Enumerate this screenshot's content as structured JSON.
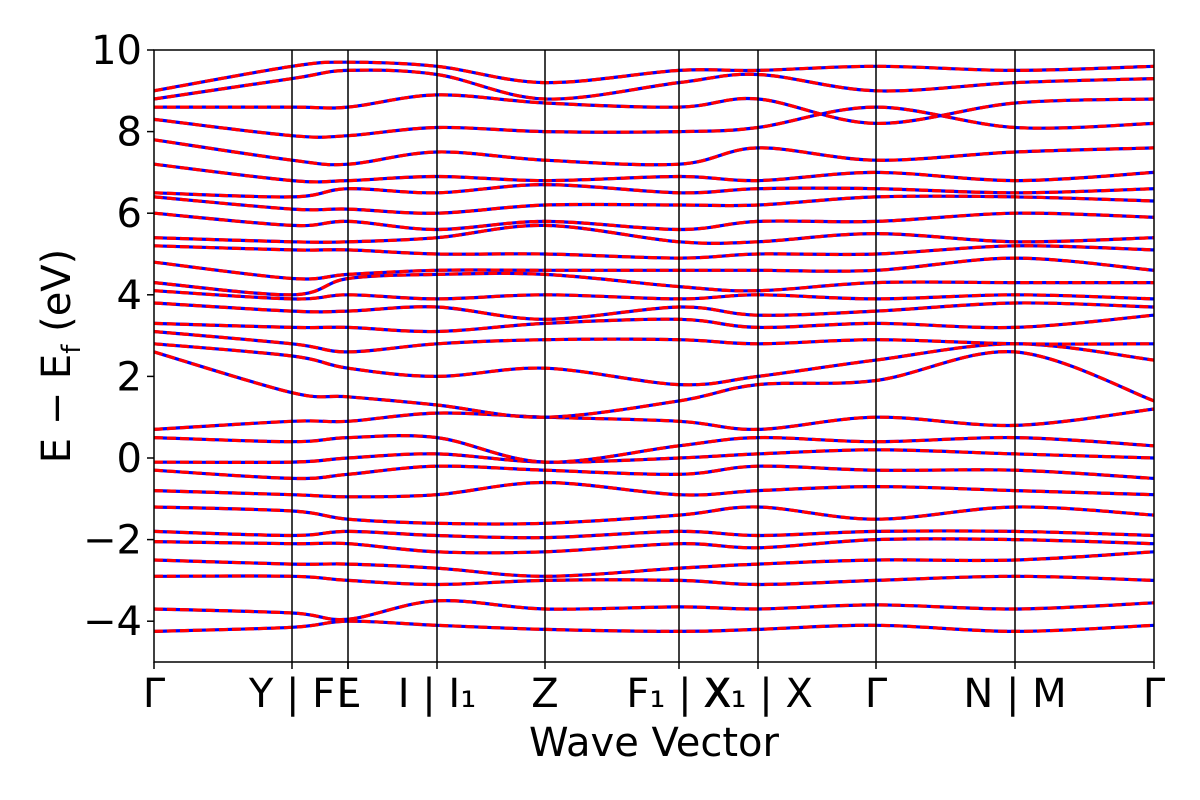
{
  "chart_data": {
    "type": "line",
    "xlabel": "Wave Vector",
    "ylabel": "E − E",
    "ylabel_subscript": "f",
    "ylabel_unit": " (eV)",
    "ylim": [
      -5,
      10
    ],
    "yticks": [
      -4,
      -2,
      0,
      2,
      4,
      6,
      8,
      10
    ],
    "ytick_labels": [
      "−4",
      "−2",
      "0",
      "2",
      "4",
      "6",
      "8",
      "10"
    ],
    "xlim": [
      0,
      1
    ],
    "kpoints": [
      {
        "x": 0.0,
        "label": "Γ"
      },
      {
        "x": 0.138,
        "label": "Y | F"
      },
      {
        "x": 0.194,
        "label": "F"
      },
      {
        "x": 0.194,
        "label": "L"
      },
      {
        "x": 0.283,
        "label": "I | I₁"
      },
      {
        "x": 0.391,
        "label": "Z"
      },
      {
        "x": 0.525,
        "label": "F₁ | X"
      },
      {
        "x": 0.604,
        "label": "X₁ | X"
      },
      {
        "x": 0.722,
        "label": "Γ"
      },
      {
        "x": 0.861,
        "label": "N | M"
      },
      {
        "x": 1.0,
        "label": "Γ"
      }
    ],
    "grid": false,
    "series_colors": {
      "primary": "#ff0000",
      "overlay": "#0000ff"
    },
    "bands": [
      {
        "name": "",
        "y": [
          -4.25,
          -4.15,
          -4.0,
          -4.1,
          -4.2,
          -4.25,
          -4.2,
          -4.1,
          -4.25,
          -4.1,
          -4.25
        ]
      },
      {
        "name": "",
        "y": [
          -3.7,
          -3.8,
          -3.95,
          -3.5,
          -3.7,
          -3.65,
          -3.7,
          -3.6,
          -3.7,
          -3.55,
          -3.7
        ]
      },
      {
        "name": "",
        "y": [
          -2.9,
          -2.9,
          -3.0,
          -3.1,
          -3.0,
          -3.0,
          -3.1,
          -3.0,
          -2.9,
          -3.0,
          -2.9
        ]
      },
      {
        "name": "",
        "y": [
          -2.5,
          -2.6,
          -2.6,
          -2.7,
          -2.9,
          -2.7,
          -2.6,
          -2.5,
          -2.5,
          -2.3,
          -2.5
        ]
      },
      {
        "name": "",
        "y": [
          -2.05,
          -2.1,
          -2.1,
          -2.3,
          -2.3,
          -2.1,
          -2.2,
          -2.0,
          -2.0,
          -2.1,
          -2.05
        ]
      },
      {
        "name": "",
        "y": [
          -1.8,
          -1.9,
          -1.8,
          -1.9,
          -1.95,
          -1.8,
          -1.9,
          -1.8,
          -1.8,
          -1.9,
          -1.8
        ]
      },
      {
        "name": "",
        "y": [
          -1.2,
          -1.3,
          -1.5,
          -1.6,
          -1.6,
          -1.4,
          -1.2,
          -1.5,
          -1.2,
          -1.4,
          -1.2
        ]
      },
      {
        "name": "",
        "y": [
          -0.8,
          -0.9,
          -0.95,
          -0.9,
          -0.6,
          -0.9,
          -0.8,
          -0.7,
          -0.8,
          -0.9,
          -0.8
        ]
      },
      {
        "name": "",
        "y": [
          -0.3,
          -0.5,
          -0.4,
          -0.2,
          -0.3,
          -0.4,
          -0.2,
          -0.3,
          -0.3,
          -0.5,
          -0.3
        ]
      },
      {
        "name": "",
        "y": [
          -0.1,
          -0.1,
          0.0,
          0.1,
          -0.1,
          0.0,
          0.1,
          0.2,
          0.1,
          0.0,
          -0.1
        ]
      },
      {
        "name": "",
        "y": [
          0.5,
          0.4,
          0.5,
          0.5,
          -0.1,
          0.3,
          0.5,
          0.4,
          0.5,
          0.3,
          0.5
        ]
      },
      {
        "name": "",
        "y": [
          0.7,
          0.9,
          0.9,
          1.1,
          1.0,
          0.9,
          0.7,
          1.0,
          0.8,
          1.2,
          0.7
        ]
      },
      {
        "name": "",
        "y": [
          2.6,
          1.6,
          1.5,
          1.3,
          1.0,
          1.4,
          1.8,
          1.9,
          2.6,
          1.4,
          2.6
        ]
      },
      {
        "name": "",
        "y": [
          2.8,
          2.5,
          2.2,
          2.0,
          2.2,
          1.8,
          2.0,
          2.4,
          2.8,
          2.4,
          2.8
        ]
      },
      {
        "name": "",
        "y": [
          3.1,
          2.8,
          2.6,
          2.8,
          2.9,
          2.9,
          2.8,
          2.9,
          2.8,
          2.8,
          3.1
        ]
      },
      {
        "name": "",
        "y": [
          3.3,
          3.2,
          3.2,
          3.1,
          3.3,
          3.4,
          3.2,
          3.3,
          3.2,
          3.5,
          3.3
        ]
      },
      {
        "name": "",
        "y": [
          3.8,
          3.6,
          3.6,
          3.7,
          3.4,
          3.7,
          3.5,
          3.6,
          3.8,
          3.7,
          3.8
        ]
      },
      {
        "name": "",
        "y": [
          4.1,
          3.9,
          4.0,
          3.9,
          4.0,
          3.9,
          4.0,
          3.9,
          4.0,
          3.9,
          4.1
        ]
      },
      {
        "name": "",
        "y": [
          4.3,
          4.0,
          4.4,
          4.5,
          4.5,
          4.2,
          4.1,
          4.3,
          4.3,
          4.3,
          4.3
        ]
      },
      {
        "name": "",
        "y": [
          4.8,
          4.4,
          4.5,
          4.6,
          4.6,
          4.6,
          4.6,
          4.6,
          4.9,
          4.6,
          4.8
        ]
      },
      {
        "name": "",
        "y": [
          5.2,
          5.1,
          5.1,
          5.0,
          5.0,
          4.9,
          5.0,
          5.0,
          5.2,
          5.1,
          5.2
        ]
      },
      {
        "name": "",
        "y": [
          5.4,
          5.3,
          5.3,
          5.4,
          5.7,
          5.3,
          5.3,
          5.5,
          5.3,
          5.4,
          5.4
        ]
      },
      {
        "name": "",
        "y": [
          6.0,
          5.7,
          5.8,
          5.6,
          5.8,
          5.6,
          5.8,
          5.8,
          6.0,
          5.9,
          6.0
        ]
      },
      {
        "name": "",
        "y": [
          6.4,
          6.1,
          6.1,
          6.0,
          6.2,
          6.2,
          6.2,
          6.4,
          6.4,
          6.3,
          6.4
        ]
      },
      {
        "name": "",
        "y": [
          6.5,
          6.4,
          6.6,
          6.5,
          6.7,
          6.5,
          6.6,
          6.6,
          6.5,
          6.6,
          6.5
        ]
      },
      {
        "name": "",
        "y": [
          7.2,
          6.8,
          6.8,
          6.9,
          6.8,
          6.9,
          6.8,
          7.0,
          6.8,
          7.0,
          7.2
        ]
      },
      {
        "name": "",
        "y": [
          7.8,
          7.3,
          7.2,
          7.5,
          7.3,
          7.2,
          7.6,
          7.3,
          7.5,
          7.6,
          7.8
        ]
      },
      {
        "name": "",
        "y": [
          8.3,
          7.9,
          7.9,
          8.1,
          8.0,
          8.0,
          8.1,
          8.6,
          8.1,
          8.2,
          8.3
        ]
      },
      {
        "name": "",
        "y": [
          8.6,
          8.6,
          8.6,
          8.9,
          8.7,
          8.6,
          8.8,
          8.2,
          8.7,
          8.8,
          8.6
        ]
      },
      {
        "name": "",
        "y": [
          8.8,
          9.3,
          9.5,
          9.4,
          8.8,
          9.2,
          9.4,
          9.0,
          9.2,
          9.3,
          8.8
        ]
      },
      {
        "name": "",
        "y": [
          9.0,
          9.6,
          9.7,
          9.6,
          9.2,
          9.5,
          9.5,
          9.6,
          9.5,
          9.6,
          9.0
        ]
      }
    ]
  }
}
